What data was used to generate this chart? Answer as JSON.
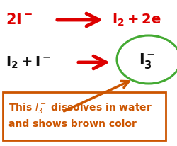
{
  "bg_color": "#ffffff",
  "red_color": "#dd0000",
  "orange_color": "#cc5500",
  "green_color": "#44aa33",
  "black_color": "#111111",
  "figsize": [
    2.5,
    2.06
  ],
  "dpi": 100,
  "xlim": [
    0,
    250
  ],
  "ylim": [
    0,
    206
  ]
}
